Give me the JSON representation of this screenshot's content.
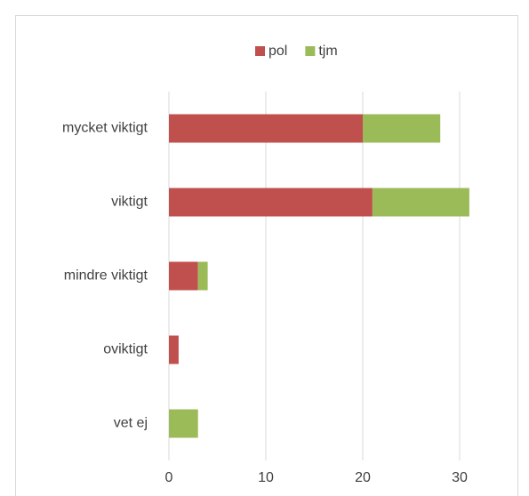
{
  "chart_data": {
    "type": "bar",
    "orientation": "horizontal",
    "stacked": true,
    "categories": [
      "mycket viktigt",
      "viktigt",
      "mindre viktigt",
      "oviktigt",
      "vet ej"
    ],
    "series": [
      {
        "name": "pol",
        "color": "#c0504d",
        "values": [
          20,
          21,
          3,
          1,
          0
        ]
      },
      {
        "name": "tjm",
        "color": "#9bbb59",
        "values": [
          8,
          10,
          1,
          0,
          3
        ]
      }
    ],
    "xlim": [
      0,
      35
    ],
    "xticks": [
      0,
      10,
      20,
      30
    ],
    "grid": true,
    "legend": "top"
  }
}
